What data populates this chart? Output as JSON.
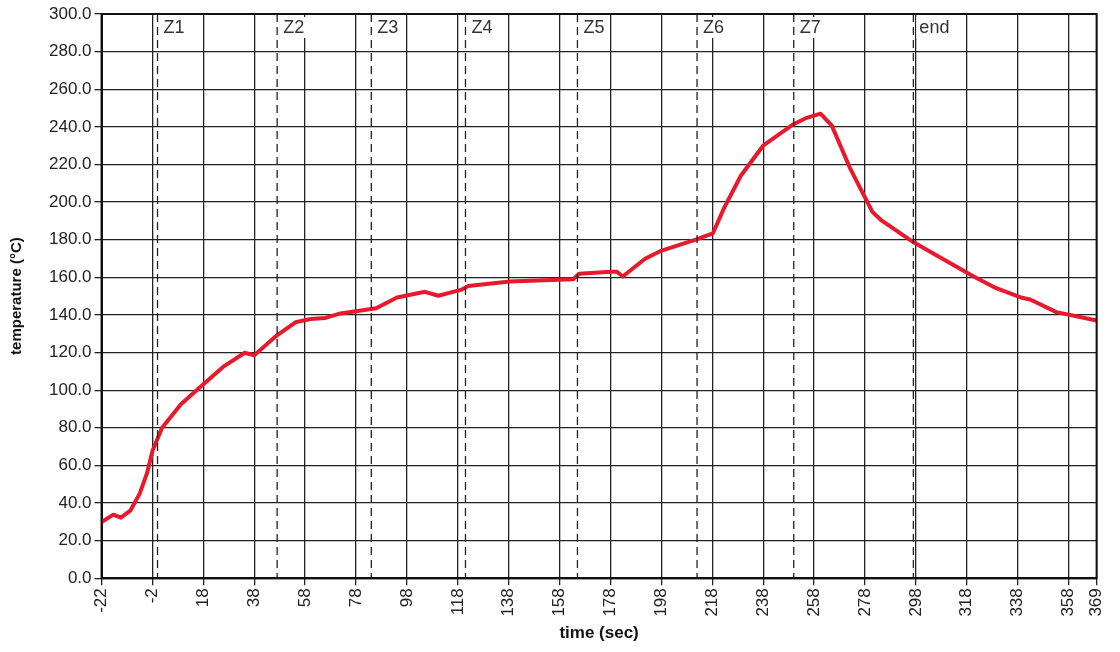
{
  "chart_data": {
    "type": "line",
    "xlabel": "time (sec)",
    "ylabel": "temperature (°C)",
    "xlim": [
      -22,
      369
    ],
    "xticks": [
      -22,
      -2,
      18,
      38,
      58,
      78,
      98,
      118,
      138,
      158,
      178,
      198,
      218,
      238,
      258,
      278,
      298,
      318,
      338,
      358,
      369
    ],
    "ylim": [
      0,
      300
    ],
    "yticks": [
      {
        "value": 0,
        "label": "0.0"
      },
      {
        "value": 20,
        "label": "20.0"
      },
      {
        "value": 40,
        "label": "40.0"
      },
      {
        "value": 60,
        "label": "60.0"
      },
      {
        "value": 80,
        "label": "80.0"
      },
      {
        "value": 100,
        "label": "100.0"
      },
      {
        "value": 120,
        "label": "120.0"
      },
      {
        "value": 140,
        "label": "140.0"
      },
      {
        "value": 160,
        "label": "160.0"
      },
      {
        "value": 180,
        "label": "180.0"
      },
      {
        "value": 200,
        "label": "200.0"
      },
      {
        "value": 220,
        "label": "220.0"
      },
      {
        "value": 240,
        "label": "240.0"
      },
      {
        "value": 260,
        "label": "260.0"
      },
      {
        "value": 280,
        "label": "280.0"
      },
      {
        "value": 300,
        "label": "300.0"
      }
    ],
    "grid": true,
    "marker": "none",
    "line_style": "solid",
    "series": [
      {
        "color": "#e8192c",
        "x": [
          -22,
          -17.4,
          -14.4,
          -10.7,
          -7,
          -4.1,
          -1.9,
          1.8,
          9.2,
          15.9,
          26.2,
          34.3,
          38,
          46.8,
          54.2,
          60.1,
          66,
          71.9,
          79.3,
          85.9,
          94.1,
          105.1,
          110.3,
          119.2,
          122.1,
          138.4,
          163.4,
          165.6,
          178.2,
          180.5,
          182.8,
          191.6,
          197.5,
          211.5,
          218.2,
          222.6,
          229.2,
          238.1,
          249.9,
          255.1,
          260.5,
          264.9,
          272.1,
          280.9,
          284.6,
          297.1,
          320.7,
          328.8,
          339.2,
          342.9,
          353.2,
          369
        ],
        "values": [
          29.8,
          33.8,
          32.2,
          35.9,
          45,
          56,
          68,
          80,
          92.5,
          100.6,
          112.8,
          119.9,
          118.5,
          129,
          136.1,
          137.8,
          138.4,
          140.8,
          142.2,
          143.6,
          149.3,
          152.3,
          150.2,
          153.3,
          155.4,
          157.8,
          159,
          161.9,
          163,
          163,
          160.4,
          169.9,
          173.9,
          180,
          183.3,
          196.8,
          214,
          230.2,
          241.4,
          244.8,
          247,
          240.8,
          218.1,
          194.8,
          190.1,
          178.6,
          160.4,
          154.7,
          149.3,
          148.2,
          141.5,
          137
        ]
      }
    ],
    "ref_lines": [
      {
        "axis": "x",
        "value": 0,
        "label": "Z1",
        "line_style": "dashed"
      },
      {
        "axis": "x",
        "value": 47,
        "label": "Z2",
        "line_style": "dashed"
      },
      {
        "axis": "x",
        "value": 84,
        "label": "Z3",
        "line_style": "dashed"
      },
      {
        "axis": "x",
        "value": 121,
        "label": "Z4",
        "line_style": "dashed"
      },
      {
        "axis": "x",
        "value": 165,
        "label": "Z5",
        "line_style": "dashed"
      },
      {
        "axis": "x",
        "value": 212,
        "label": "Z6",
        "line_style": "dashed"
      },
      {
        "axis": "x",
        "value": 250,
        "label": "Z7",
        "line_style": "dashed"
      },
      {
        "axis": "x",
        "value": 297,
        "label": "end",
        "line_style": "dashed"
      }
    ]
  }
}
